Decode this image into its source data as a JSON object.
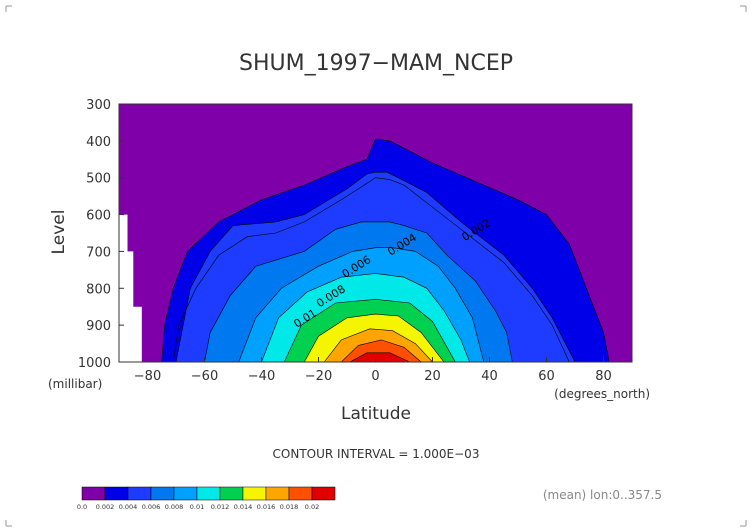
{
  "chart_data": {
    "type": "heatmap",
    "title": "SHUM_1997−MAM_NCEP",
    "xlabel": "Latitude",
    "ylabel": "Level",
    "x_units": "(degrees_north)",
    "y_units": "(millibar)",
    "xlim": [
      -90,
      90
    ],
    "ylim": [
      1000,
      300
    ],
    "x_ticks": [
      "−80",
      "−60",
      "−40",
      "−20",
      "0",
      "20",
      "40",
      "60",
      "80"
    ],
    "x_tick_values": [
      -80,
      -60,
      -40,
      -20,
      0,
      20,
      40,
      60,
      80
    ],
    "y_ticks": [
      "300",
      "400",
      "500",
      "600",
      "700",
      "800",
      "900",
      "1000"
    ],
    "y_tick_values": [
      300,
      400,
      500,
      600,
      700,
      800,
      900,
      1000
    ],
    "contour_interval_text": "CONTOUR INTERVAL = 1.000E−03",
    "footer_text": "(mean) lon:0..357.5",
    "contour_labels": [
      {
        "text": "0.002",
        "lat": 36,
        "level": 650
      },
      {
        "text": "0.004",
        "lat": 10,
        "level": 690
      },
      {
        "text": "0.006",
        "lat": -6,
        "level": 750
      },
      {
        "text": "0.008",
        "lat": -15,
        "level": 830
      },
      {
        "text": "0.01",
        "lat": -24,
        "level": 890
      }
    ],
    "legend": {
      "bounds": [
        "0.0",
        "0.002",
        "0.004",
        "0.006",
        "0.008",
        "0.01",
        "0.012",
        "0.014",
        "0.016",
        "0.018",
        "0.02"
      ],
      "colors": [
        "#7f00a8",
        "#0000e8",
        "#1e3cff",
        "#0078f0",
        "#00a0ff",
        "#00e8e8",
        "#00d050",
        "#f5f500",
        "#ffa500",
        "#ff5000",
        "#e00000"
      ]
    },
    "series": [
      {
        "threshold": 0.001,
        "points": [
          [
            -75,
            1000
          ],
          [
            -74,
            900
          ],
          [
            -71,
            800
          ],
          [
            -66,
            700
          ],
          [
            -55,
            620
          ],
          [
            -40,
            560
          ],
          [
            -25,
            520
          ],
          [
            -10,
            470
          ],
          [
            -3,
            450
          ],
          [
            0,
            395
          ],
          [
            5,
            400
          ],
          [
            10,
            420
          ],
          [
            20,
            460
          ],
          [
            35,
            510
          ],
          [
            50,
            560
          ],
          [
            60,
            600
          ],
          [
            68,
            680
          ],
          [
            72,
            760
          ],
          [
            76,
            840
          ],
          [
            80,
            920
          ],
          [
            82,
            1000
          ]
        ]
      },
      {
        "threshold": 0.002,
        "points": [
          [
            -70,
            1000
          ],
          [
            -65,
            800
          ],
          [
            -58,
            700
          ],
          [
            -50,
            630
          ],
          [
            -35,
            620
          ],
          [
            -25,
            600
          ],
          [
            -10,
            530
          ],
          [
            -3,
            490
          ],
          [
            0,
            485
          ],
          [
            4,
            485
          ],
          [
            8,
            500
          ],
          [
            18,
            540
          ],
          [
            30,
            620
          ],
          [
            45,
            710
          ],
          [
            55,
            800
          ],
          [
            62,
            880
          ],
          [
            70,
            1000
          ]
        ]
      },
      {
        "threshold": 0.004,
        "points": [
          [
            -60,
            1000
          ],
          [
            -58,
            920
          ],
          [
            -51,
            820
          ],
          [
            -42,
            740
          ],
          [
            -25,
            700
          ],
          [
            -14,
            640
          ],
          [
            -5,
            620
          ],
          [
            0,
            620
          ],
          [
            5,
            620
          ],
          [
            10,
            630
          ],
          [
            18,
            650
          ],
          [
            25,
            710
          ],
          [
            35,
            780
          ],
          [
            42,
            860
          ],
          [
            46,
            920
          ],
          [
            48,
            1000
          ]
        ]
      },
      {
        "threshold": 0.006,
        "points": [
          [
            -48,
            1000
          ],
          [
            -42,
            880
          ],
          [
            -33,
            800
          ],
          [
            -20,
            740
          ],
          [
            -8,
            700
          ],
          [
            0,
            690
          ],
          [
            6,
            690
          ],
          [
            14,
            700
          ],
          [
            22,
            740
          ],
          [
            28,
            800
          ],
          [
            34,
            880
          ],
          [
            38,
            1000
          ]
        ]
      },
      {
        "threshold": 0.008,
        "points": [
          [
            -40,
            1000
          ],
          [
            -34,
            880
          ],
          [
            -24,
            810
          ],
          [
            -12,
            770
          ],
          [
            0,
            760
          ],
          [
            10,
            770
          ],
          [
            18,
            800
          ],
          [
            24,
            860
          ],
          [
            30,
            940
          ],
          [
            33,
            1000
          ]
        ]
      },
      {
        "threshold": 0.01,
        "points": [
          [
            -32,
            1000
          ],
          [
            -26,
            900
          ],
          [
            -14,
            840
          ],
          [
            0,
            830
          ],
          [
            12,
            840
          ],
          [
            20,
            890
          ],
          [
            28,
            1000
          ]
        ]
      },
      {
        "threshold": 0.012,
        "points": [
          [
            -25,
            1000
          ],
          [
            -20,
            930
          ],
          [
            -10,
            880
          ],
          [
            0,
            870
          ],
          [
            8,
            875
          ],
          [
            16,
            920
          ],
          [
            24,
            1000
          ]
        ]
      },
      {
        "threshold": 0.014,
        "points": [
          [
            -18,
            1000
          ],
          [
            -12,
            940
          ],
          [
            -2,
            910
          ],
          [
            6,
            915
          ],
          [
            14,
            950
          ],
          [
            20,
            1000
          ]
        ]
      },
      {
        "threshold": 0.016,
        "points": [
          [
            -12,
            1000
          ],
          [
            -6,
            955
          ],
          [
            2,
            940
          ],
          [
            10,
            960
          ],
          [
            16,
            1000
          ]
        ]
      },
      {
        "threshold": 0.018,
        "points": [
          [
            -9,
            1000
          ],
          [
            -3,
            975
          ],
          [
            5,
            975
          ],
          [
            12,
            1000
          ]
        ]
      }
    ],
    "missing_region": [
      [
        -90,
        600
      ],
      [
        -87,
        600
      ],
      [
        -87,
        700
      ],
      [
        -85,
        700
      ],
      [
        -85,
        850
      ],
      [
        -82,
        850
      ],
      [
        -82,
        1000
      ],
      [
        -90,
        1000
      ]
    ],
    "lines_only": [
      {
        "points": [
          [
            -71,
            1000
          ],
          [
            -69,
            900
          ],
          [
            -63,
            800
          ],
          [
            -55,
            710
          ],
          [
            -45,
            660
          ],
          [
            -35,
            650
          ],
          [
            -25,
            620
          ],
          [
            -12,
            560
          ],
          [
            -4,
            520
          ],
          [
            0,
            500
          ],
          [
            5,
            505
          ],
          [
            10,
            520
          ],
          [
            20,
            580
          ],
          [
            30,
            640
          ],
          [
            45,
            730
          ],
          [
            55,
            820
          ],
          [
            62,
            900
          ],
          [
            68,
            1000
          ]
        ]
      }
    ]
  }
}
